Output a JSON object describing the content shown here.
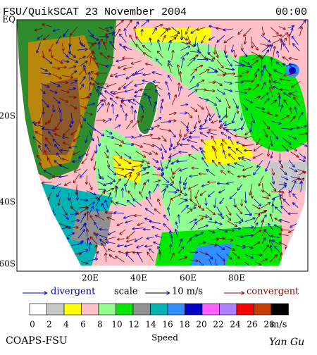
{
  "header": {
    "title": "FSU/QuikSCAT 23 November 2004",
    "time": "00:00"
  },
  "map": {
    "lat_labels": [
      "EQ",
      "20S",
      "40S",
      "60S"
    ],
    "lon_labels": [
      "20E",
      "40E",
      "60E",
      "80E"
    ]
  },
  "legend": {
    "divergent": "divergent",
    "scale": "scale",
    "scale_value": "10 m/s",
    "convergent": "convergent"
  },
  "colorbar": {
    "colors": [
      "#ffffff",
      "#c8c8c8",
      "#ffff00",
      "#ffc0c8",
      "#90ff90",
      "#00e800",
      "#909090",
      "#00b4b4",
      "#3090ff",
      "#0000c8",
      "#ff60ff",
      "#b080ff",
      "#ff0000",
      "#c84000",
      "#000000"
    ],
    "labels": [
      "0",
      "2",
      "4",
      "6",
      "8",
      "10",
      "12",
      "14",
      "16",
      "18",
      "20",
      "22",
      "24",
      "26",
      "28"
    ],
    "unit": "m/s"
  },
  "footer": {
    "left": "COAPS-FSU",
    "center": "Speed",
    "right": "Yan Gu"
  }
}
